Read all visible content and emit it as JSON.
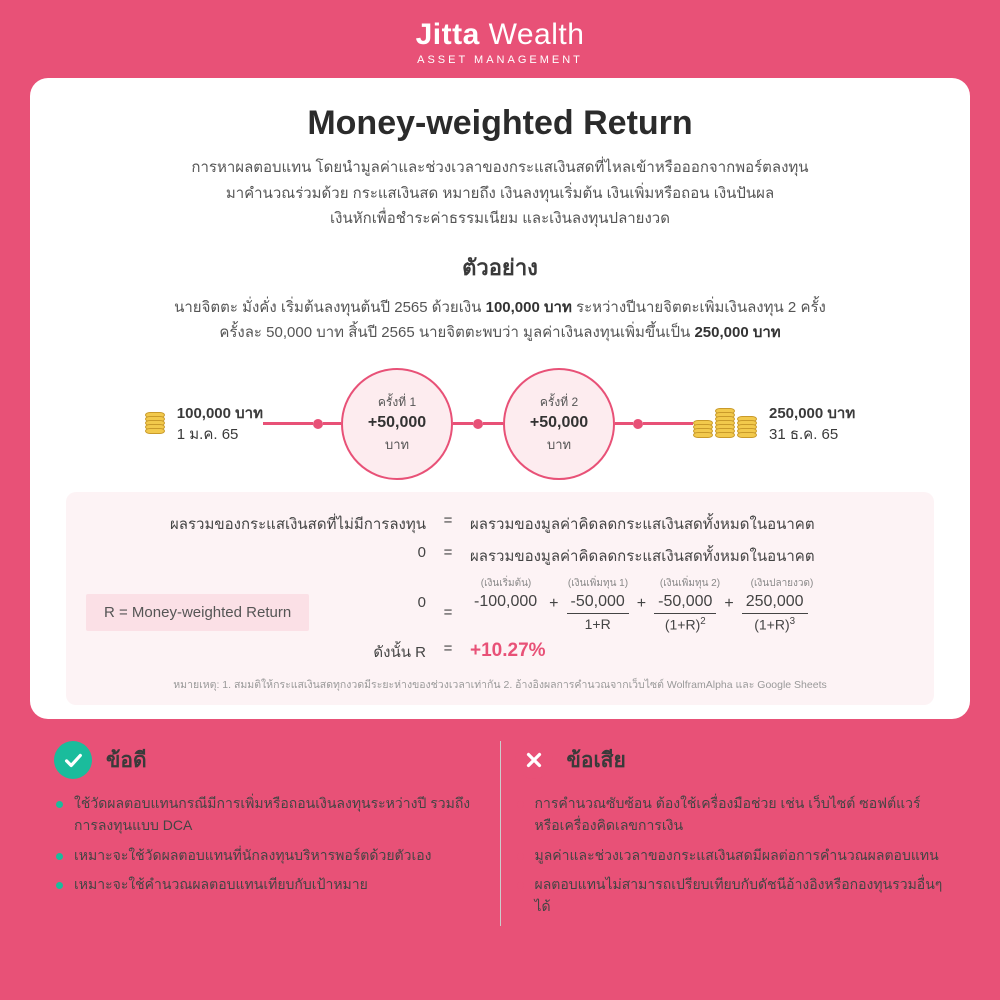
{
  "brand": {
    "name1": "Jitta",
    "name2": " Wealth",
    "sub": "ASSET MANAGEMENT"
  },
  "card": {
    "title": "Money-weighted Return",
    "desc": "การหาผลตอบแทน โดยนำมูลค่าและช่วงเวลาของกระแสเงินสดที่ไหลเข้าหรือออกจากพอร์ตลงทุน\nมาคำนวณร่วมด้วย กระแสเงินสด หมายถึง เงินลงทุนเริ่มต้น เงินเพิ่มหรือถอน เงินปันผล\nเงินหักเพื่อชำระค่าธรรมเนียม และเงินลงทุนปลายงวด",
    "ex_title": "ตัวอย่าง",
    "ex_text_parts": {
      "p1": "นายจิตตะ มั่งคั่ง เริ่มต้นลงทุนต้นปี 2565 ด้วยเงิน ",
      "b1": "100,000 บาท",
      "p2": " ระหว่างปีนายจิตตะเพิ่มเงินลงทุน 2 ครั้ง\nครั้งละ 50,000 บาท สิ้นปี 2565 นายจิตตะพบว่า มูลค่าเงินลงทุนเพิ่มขึ้นเป็น ",
      "b2": "250,000 บาท"
    },
    "timeline": {
      "start": {
        "amount": "100,000 บาท",
        "date": "1 ม.ค. 65",
        "coin_stacks": [
          5
        ]
      },
      "adds": [
        {
          "label": "ครั้งที่ 1",
          "value": "+50,000",
          "unit": "บาท"
        },
        {
          "label": "ครั้งที่ 2",
          "value": "+50,000",
          "unit": "บาท"
        }
      ],
      "end": {
        "amount": "250,000 บาท",
        "date": "31 ธ.ค. 65",
        "coin_stacks": [
          4,
          7,
          5
        ]
      }
    },
    "calc": {
      "row1_left": "ผลรวมของกระแสเงินสดที่ไม่มีการลงทุน",
      "row1_right": "ผลรวมของมูลค่าคิดลดกระแสเงินสดทั้งหมดในอนาคต",
      "row2_left": "0",
      "row2_right": "ผลรวมของมูลค่าคิดลดกระแสเงินสดทั้งหมดในอนาคต",
      "r_label": "R = Money-weighted Return",
      "hints": [
        "(เงินเริ่มต้น)",
        "(เงินเพิ่มทุน 1)",
        "(เงินเพิ่มทุน 2)",
        "(เงินปลายงวด)"
      ],
      "terms": [
        {
          "top": "-100,000",
          "bot": ""
        },
        {
          "top": "-50,000",
          "bot": "1+R"
        },
        {
          "top": "-50,000",
          "bot": "(1+R)",
          "exp": "2"
        },
        {
          "top": "250,000",
          "bot": "(1+R)",
          "exp": "3"
        }
      ],
      "eq_zero": "0",
      "result_label": "ดังนั้น  R",
      "result_value": "+10.27%",
      "note": "หมายเหตุ: 1. สมมติให้กระแสเงินสดทุกงวดมีระยะห่างของช่วงเวลาเท่ากัน  2. อ้างอิงผลการคำนวณจากเว็บไซต์ WolframAlpha และ Google Sheets"
    }
  },
  "pros": {
    "title": "ข้อดี",
    "items": [
      "ใช้วัดผลตอบแทนกรณีมีการเพิ่มหรือถอนเงินลงทุนระหว่างปี รวมถึงการลงทุนแบบ DCA",
      "เหมาะจะใช้วัดผลตอบแทนที่นักลงทุนบริหารพอร์ตด้วยตัวเอง",
      "เหมาะจะใช้คำนวณผลตอบแทนเทียบกับเป้าหมาย"
    ]
  },
  "cons": {
    "title": "ข้อเสีย",
    "items": [
      "การคำนวณซับซ้อน ต้องใช้เครื่องมือช่วย เช่น เว็บไซต์ ซอฟต์แวร์ หรือเครื่องคิดเลขการเงิน",
      "มูลค่าและช่วงเวลาของกระแสเงินสดมีผลต่อการคำนวณผลตอบแทน",
      "ผลตอบแทนไม่สามารถเปรียบเทียบกับดัชนีอ้างอิงหรือกองทุนรวมอื่นๆ ได้"
    ]
  },
  "colors": {
    "brand": "#e85177",
    "ok": "#1abc9c",
    "card_bg": "#ffffff",
    "calc_bg": "#fdf3f5",
    "bubble_fill": "#fdecef"
  }
}
